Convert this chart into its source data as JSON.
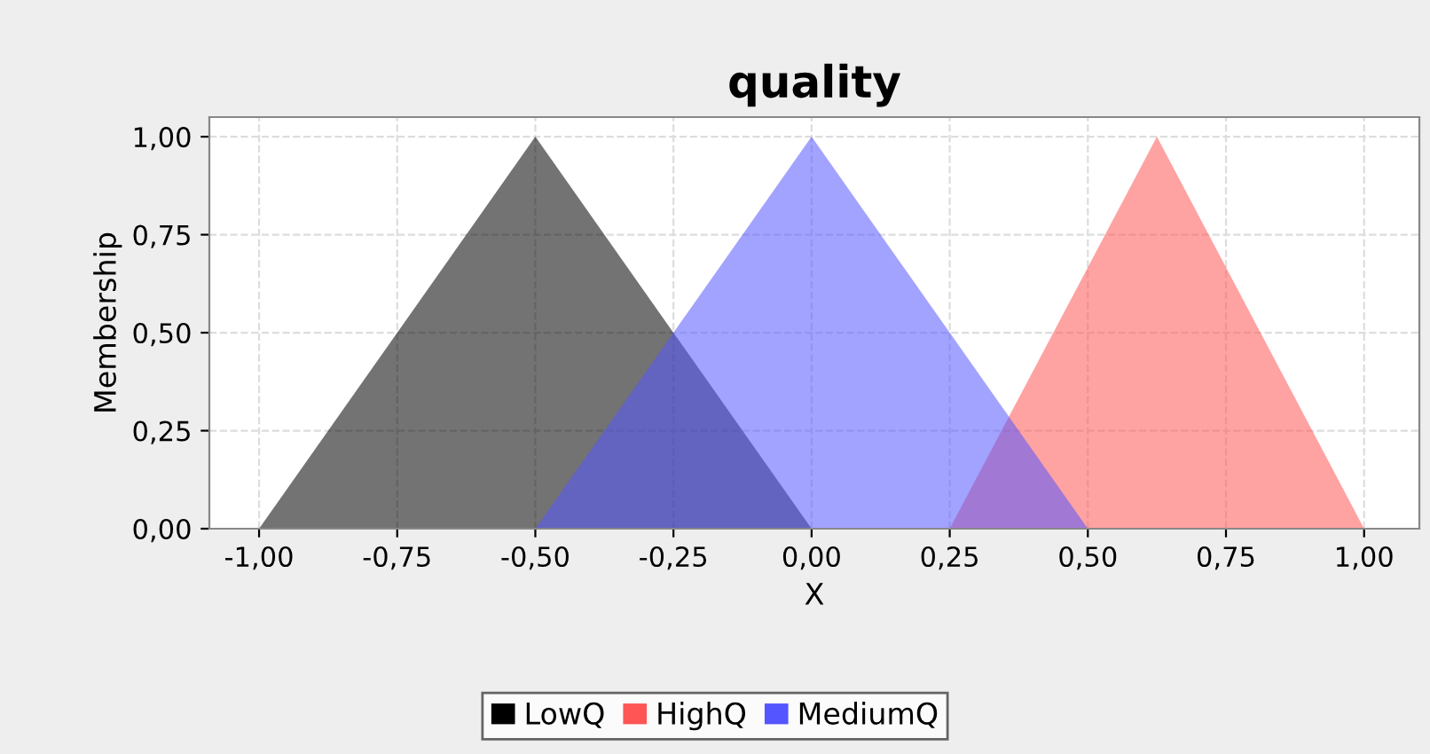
{
  "chart_data": {
    "type": "area",
    "title": "quality",
    "xlabel": "X",
    "ylabel": "Membership",
    "series": [
      {
        "name": "LowQ",
        "color": "#000000",
        "x": [
          -1.0,
          -0.5,
          0.0
        ],
        "values": [
          0,
          1,
          0
        ]
      },
      {
        "name": "HighQ",
        "color": "#ff5555",
        "x": [
          0.25,
          0.625,
          1.0
        ],
        "values": [
          0,
          1,
          0
        ]
      },
      {
        "name": "MediumQ",
        "color": "#5555ff",
        "x": [
          -0.5,
          0.0,
          0.5
        ],
        "values": [
          0,
          1,
          0
        ]
      }
    ],
    "xlim": [
      -1.09,
      1.1
    ],
    "ylim": [
      0,
      1.05
    ],
    "xticks": [
      {
        "value": -1.0,
        "label": "-1,00"
      },
      {
        "value": -0.75,
        "label": "-0,75"
      },
      {
        "value": -0.5,
        "label": "-0,50"
      },
      {
        "value": -0.25,
        "label": "-0,25"
      },
      {
        "value": 0.0,
        "label": "0,00"
      },
      {
        "value": 0.25,
        "label": "0,25"
      },
      {
        "value": 0.5,
        "label": "0,50"
      },
      {
        "value": 0.75,
        "label": "0,75"
      },
      {
        "value": 1.0,
        "label": "1,00"
      }
    ],
    "yticks": [
      {
        "value": 0.0,
        "label": "0,00"
      },
      {
        "value": 0.25,
        "label": "0,25"
      },
      {
        "value": 0.5,
        "label": "0,50"
      },
      {
        "value": 0.75,
        "label": "0,75"
      },
      {
        "value": 1.0,
        "label": "1,00"
      }
    ],
    "grid": true,
    "legend": "bottom"
  }
}
